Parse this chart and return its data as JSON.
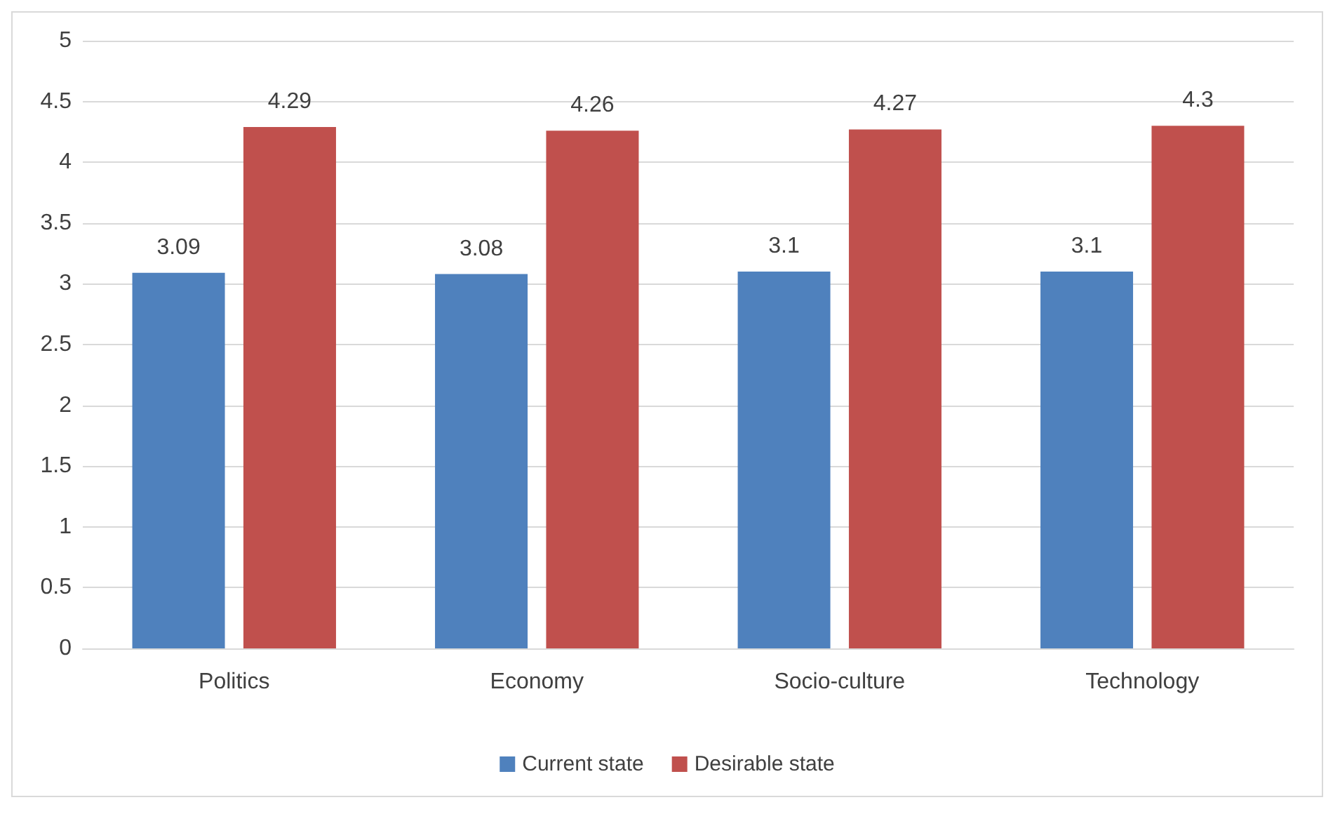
{
  "chart_data": {
    "type": "bar",
    "categories": [
      "Politics",
      "Economy",
      "Socio-culture",
      "Technology"
    ],
    "series": [
      {
        "name": "Current state",
        "color": "#4f81bd",
        "values": [
          3.09,
          3.08,
          3.1,
          3.1
        ]
      },
      {
        "name": "Desirable state",
        "color": "#c0504d",
        "values": [
          4.29,
          4.26,
          4.27,
          4.3
        ]
      }
    ],
    "ylim": [
      0,
      5
    ],
    "yticks": [
      0,
      0.5,
      1,
      1.5,
      2,
      2.5,
      3,
      3.5,
      4,
      4.5,
      5
    ],
    "grid": "y",
    "legend": "bottom",
    "data_labels": true
  }
}
